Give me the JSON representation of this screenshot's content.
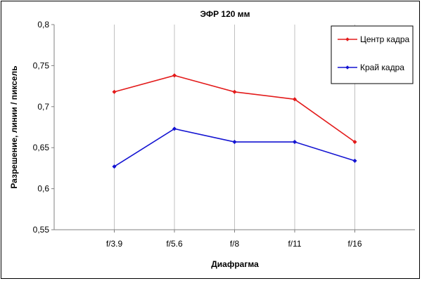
{
  "chart_data": {
    "type": "line",
    "title": "ЭФР 120 мм",
    "xlabel": "Диафрагма",
    "ylabel": "Разрешение, линии / пиксель",
    "categories": [
      "f/3.9",
      "f/5.6",
      "f/8",
      "f/11",
      "f/16"
    ],
    "ylim": [
      0.55,
      0.8
    ],
    "yticks": [
      "0,55",
      "0,6",
      "0,65",
      "0,7",
      "0,75",
      "0,8"
    ],
    "grid": "vertical",
    "legend_position": "top-right",
    "series": [
      {
        "name": "Центр кадра",
        "color": "#e31b1b",
        "values": [
          0.718,
          0.738,
          0.718,
          0.709,
          0.657
        ]
      },
      {
        "name": "Край кадра",
        "color": "#1414d2",
        "values": [
          0.627,
          0.673,
          0.657,
          0.657,
          0.634
        ]
      }
    ]
  }
}
